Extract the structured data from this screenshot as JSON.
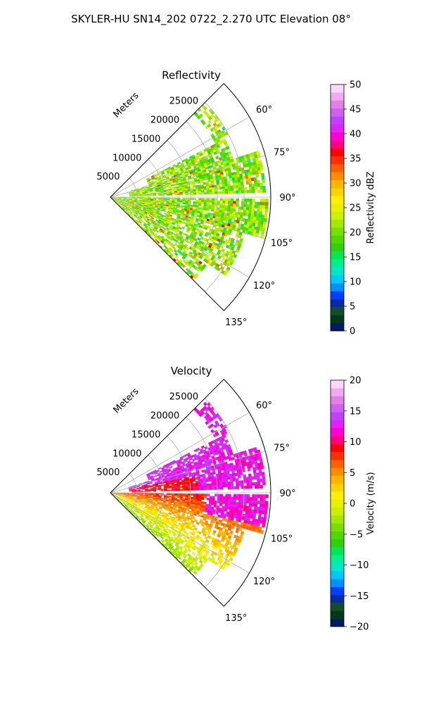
{
  "title": "SKYLER-HU  SN14_202  0722_2.270 UTC Elevation 08°",
  "chart_data": [
    {
      "type": "heatmap",
      "title": "Reflectivity",
      "projection": "polar-sector",
      "radial_label": "Meters",
      "r_ticks": [
        "5000",
        "10000",
        "15000",
        "20000",
        "25000"
      ],
      "r_tick_values": [
        5000,
        10000,
        15000,
        20000,
        25000
      ],
      "r_max": 30000,
      "theta_ticks": [
        "60°",
        "75°",
        "90°",
        "105°",
        "120°",
        "135°"
      ],
      "theta_tick_values": [
        60,
        75,
        90,
        105,
        120,
        135
      ],
      "theta_range": [
        45,
        135
      ],
      "colorbar": {
        "label": "Reflectivity dBZ",
        "min": 0,
        "max": 50,
        "ticks": [
          "0",
          "5",
          "10",
          "15",
          "20",
          "25",
          "30",
          "35",
          "40",
          "45",
          "50"
        ],
        "tick_values": [
          0,
          5,
          10,
          15,
          20,
          25,
          30,
          35,
          40,
          45,
          50
        ],
        "colors": [
          "#001a66",
          "#003a1a",
          "#144d2a",
          "#0a2aa0",
          "#0040ff",
          "#0090ff",
          "#00c8ff",
          "#00e6c8",
          "#00f090",
          "#00e85a",
          "#30d010",
          "#50d800",
          "#78e000",
          "#a0ea00",
          "#c8f000",
          "#e6f000",
          "#fff000",
          "#ffd200",
          "#ffb400",
          "#ff8c00",
          "#ff6000",
          "#ff3000",
          "#ff0000",
          "#ff0080",
          "#ff00d0",
          "#e020ff",
          "#c040ff",
          "#d060f0",
          "#e080e8",
          "#f0a8ee",
          "#ffd6ff"
        ]
      },
      "dominant_value_range": [
        15,
        28
      ],
      "annotation_points": []
    },
    {
      "type": "heatmap",
      "title": "Velocity",
      "projection": "polar-sector",
      "radial_label": "Meters",
      "r_ticks": [
        "5000",
        "10000",
        "15000",
        "20000",
        "25000"
      ],
      "r_tick_values": [
        5000,
        10000,
        15000,
        20000,
        25000
      ],
      "r_max": 30000,
      "theta_ticks": [
        "60°",
        "75°",
        "90°",
        "105°",
        "120°",
        "135°"
      ],
      "theta_tick_values": [
        60,
        75,
        90,
        105,
        120,
        135
      ],
      "theta_range": [
        45,
        135
      ],
      "colorbar": {
        "label": "Velocity (m/s)",
        "min": -20,
        "max": 20,
        "ticks": [
          "−20",
          "−15",
          "−10",
          "−5",
          "0",
          "5",
          "10",
          "15",
          "20"
        ],
        "tick_values": [
          -20,
          -15,
          -10,
          -5,
          0,
          5,
          10,
          15,
          20
        ],
        "colors": [
          "#001a66",
          "#003a1a",
          "#144d2a",
          "#0a2aa0",
          "#0040ff",
          "#0090ff",
          "#00c8ff",
          "#00e6c8",
          "#00f090",
          "#00e85a",
          "#30d010",
          "#50d800",
          "#78e000",
          "#a0ea00",
          "#c8f000",
          "#e6f000",
          "#fff000",
          "#ffd200",
          "#ffb400",
          "#ff8c00",
          "#ff6000",
          "#ff3000",
          "#ff0000",
          "#ff0080",
          "#ff00d0",
          "#e020ff",
          "#c040ff",
          "#d060f0",
          "#e080e8",
          "#f0a8ee",
          "#ffd6ff"
        ]
      },
      "dominant_value_range": [
        -8,
        15
      ]
    }
  ]
}
